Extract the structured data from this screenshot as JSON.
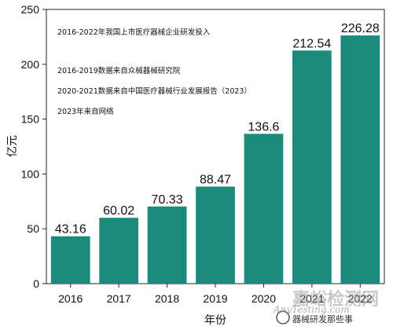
{
  "chart_data": {
    "type": "bar",
    "categories": [
      "2016",
      "2017",
      "2018",
      "2019",
      "2020",
      "2021",
      "2022"
    ],
    "values": [
      43.16,
      60.02,
      70.33,
      88.47,
      136.6,
      212.54,
      226.28
    ],
    "data_labels": [
      "43.16",
      "60.02",
      "70.33",
      "88.47",
      "136.6",
      "212.54",
      "226.28"
    ],
    "xlabel": "年份",
    "ylabel": "亿元",
    "ylim": [
      0,
      250
    ],
    "yticks": [
      "0",
      "50",
      "100",
      "150",
      "200",
      "250"
    ],
    "grid": false,
    "bar_color": "#1a8a7a",
    "annotations": [
      "2016-2022年我国上市医疗器械企业研发投入",
      "2016-2019数据来自众械器械研究院",
      "2020-2021数据来自中国医疗器械行业发展报告（2023）",
      "2023年来自网络"
    ]
  },
  "watermark": {
    "text": "嘉峪检测网",
    "url": "AnyTesting.com",
    "sub": "器械研发那些事"
  }
}
